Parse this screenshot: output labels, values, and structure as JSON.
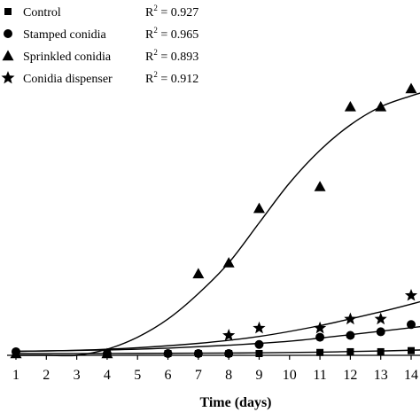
{
  "chart_data": {
    "type": "scatter",
    "xlabel": "Time (days)",
    "ylabel": "",
    "xlim": [
      0.6,
      14.4
    ],
    "ylim": [
      -4,
      100
    ],
    "x_ticks": [
      1,
      2,
      3,
      4,
      5,
      6,
      7,
      8,
      9,
      10,
      11,
      12,
      13,
      14
    ],
    "x_tick_labels": [
      "1",
      "2",
      "3",
      "4",
      "5",
      "6",
      "7",
      "8",
      "9",
      "10",
      "11",
      "12",
      "13",
      "14"
    ],
    "grid": false,
    "legend_position": "top-left",
    "series": [
      {
        "name": "Control",
        "r2_label": "R",
        "r2_value": "= 0.927",
        "marker": "square",
        "points": [
          [
            1,
            0
          ],
          [
            4,
            0
          ],
          [
            6,
            0
          ],
          [
            7,
            0
          ],
          [
            8,
            0
          ],
          [
            9,
            0
          ],
          [
            11,
            0.3
          ],
          [
            12,
            0.5
          ],
          [
            13,
            0.5
          ],
          [
            14,
            0.8
          ]
        ],
        "fit": [
          [
            1,
            0
          ],
          [
            4,
            0
          ],
          [
            7,
            0.1
          ],
          [
            9,
            0.2
          ],
          [
            11,
            0.4
          ],
          [
            13,
            0.7
          ],
          [
            14.4,
            1.0
          ]
        ]
      },
      {
        "name": "Stamped conidia",
        "r2_label": "R",
        "r2_value": "= 0.965",
        "marker": "circle",
        "points": [
          [
            1,
            0.5
          ],
          [
            4,
            0
          ],
          [
            6,
            0
          ],
          [
            7,
            0
          ],
          [
            8,
            0
          ],
          [
            9,
            2.5
          ],
          [
            11,
            4.5
          ],
          [
            12,
            5
          ],
          [
            13,
            6
          ],
          [
            14,
            8
          ]
        ],
        "fit": [
          [
            1,
            0.6
          ],
          [
            4,
            1.0
          ],
          [
            6,
            1.5
          ],
          [
            8,
            2.3
          ],
          [
            10,
            3.4
          ],
          [
            12,
            5.2
          ],
          [
            14.4,
            7.5
          ]
        ]
      },
      {
        "name": "Sprinkled conidia",
        "r2_label": "R",
        "r2_value": "= 0.893",
        "marker": "triangle",
        "points": [
          [
            1,
            0
          ],
          [
            4,
            0
          ],
          [
            7,
            22
          ],
          [
            8,
            25
          ],
          [
            9,
            40
          ],
          [
            11,
            46
          ],
          [
            12,
            68
          ],
          [
            13,
            68
          ],
          [
            14,
            73
          ]
        ],
        "fit": [
          [
            1,
            -2.5
          ],
          [
            2,
            -2
          ],
          [
            3,
            -0.8
          ],
          [
            4,
            1.2
          ],
          [
            5,
            4.5
          ],
          [
            6,
            9.5
          ],
          [
            7,
            16.5
          ],
          [
            8,
            25
          ],
          [
            9,
            36
          ],
          [
            10,
            47
          ],
          [
            11,
            56
          ],
          [
            12,
            63
          ],
          [
            13,
            68
          ],
          [
            14,
            71
          ],
          [
            14.4,
            72
          ]
        ]
      },
      {
        "name": "Conidia dispenser",
        "r2_label": "R",
        "r2_value": "= 0.912",
        "marker": "star",
        "points": [
          [
            8,
            5
          ],
          [
            9,
            7
          ],
          [
            11,
            7
          ],
          [
            12,
            9.5
          ],
          [
            13,
            9.5
          ],
          [
            14,
            16
          ]
        ],
        "fit": [
          [
            1,
            0.6
          ],
          [
            3,
            0.9
          ],
          [
            5,
            1.6
          ],
          [
            7,
            2.8
          ],
          [
            9,
            4.7
          ],
          [
            11,
            7.7
          ],
          [
            13,
            11.5
          ],
          [
            14.4,
            14.5
          ]
        ]
      }
    ]
  }
}
